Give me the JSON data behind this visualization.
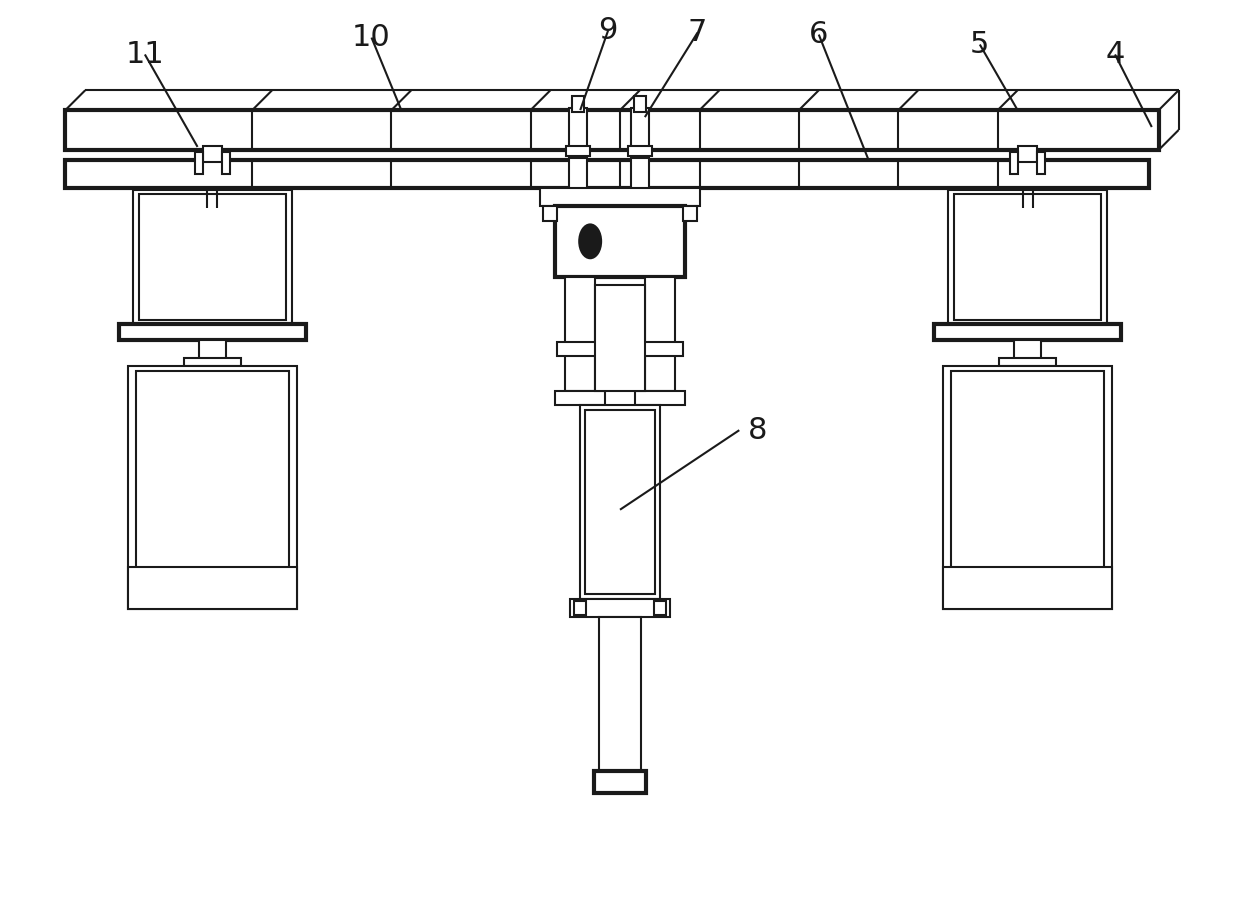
{
  "background_color": "#ffffff",
  "line_color": "#1a1a1a",
  "lw": 1.5,
  "lw_thick": 3.0,
  "fig_width": 12.4,
  "fig_height": 9.23,
  "label_fontsize": 22
}
